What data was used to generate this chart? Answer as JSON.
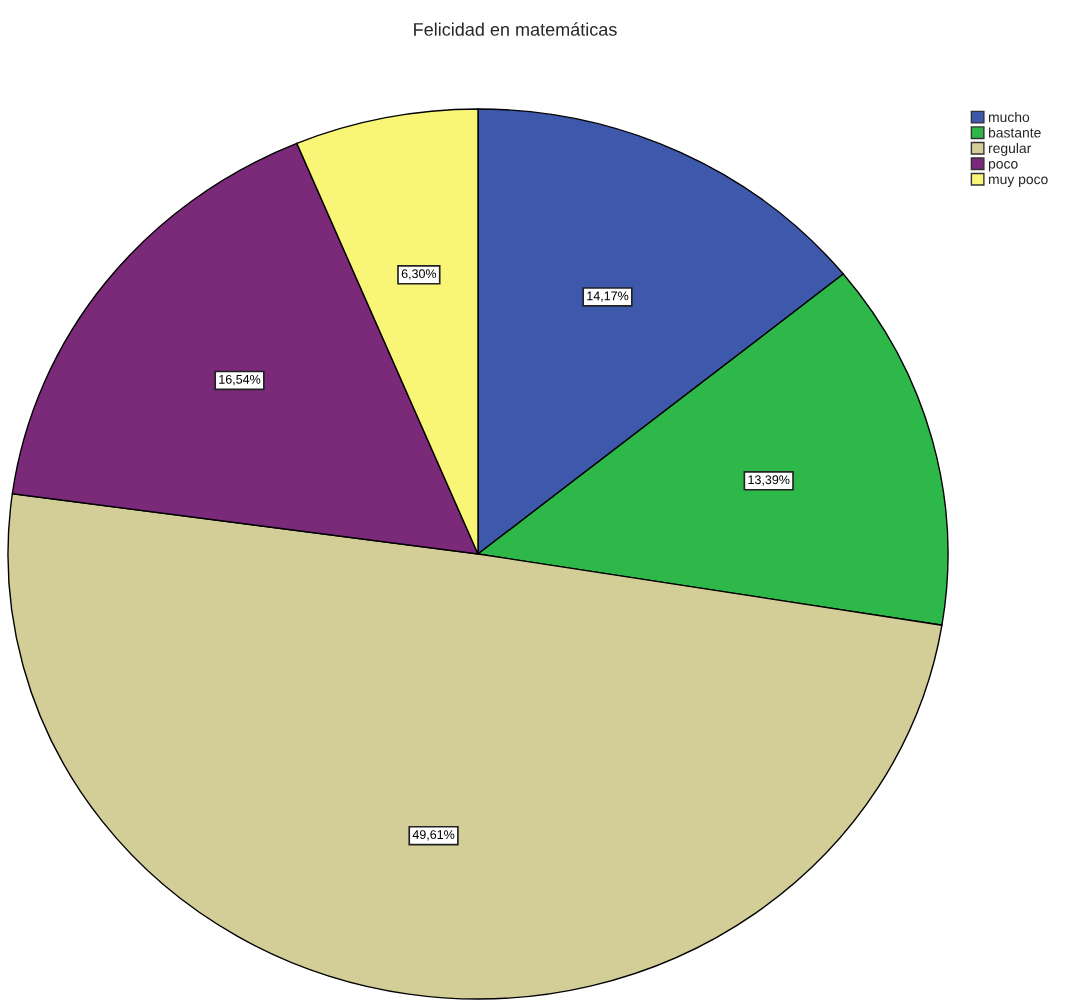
{
  "chart_data": {
    "type": "pie",
    "title": "Felicidad en matemáticas",
    "categories": [
      "mucho",
      "bastante",
      "regular",
      "poco",
      "muy poco"
    ],
    "values": [
      14.17,
      13.39,
      49.61,
      16.54,
      6.3
    ],
    "colors": [
      "#3e58ac",
      "#2fb84a",
      "#d3ce97",
      "#7b2a7a",
      "#f9f577"
    ],
    "value_labels": [
      "14,17%",
      "13,39%",
      "49,61%",
      "16,54%",
      "6,30%"
    ],
    "legend": "top right"
  }
}
